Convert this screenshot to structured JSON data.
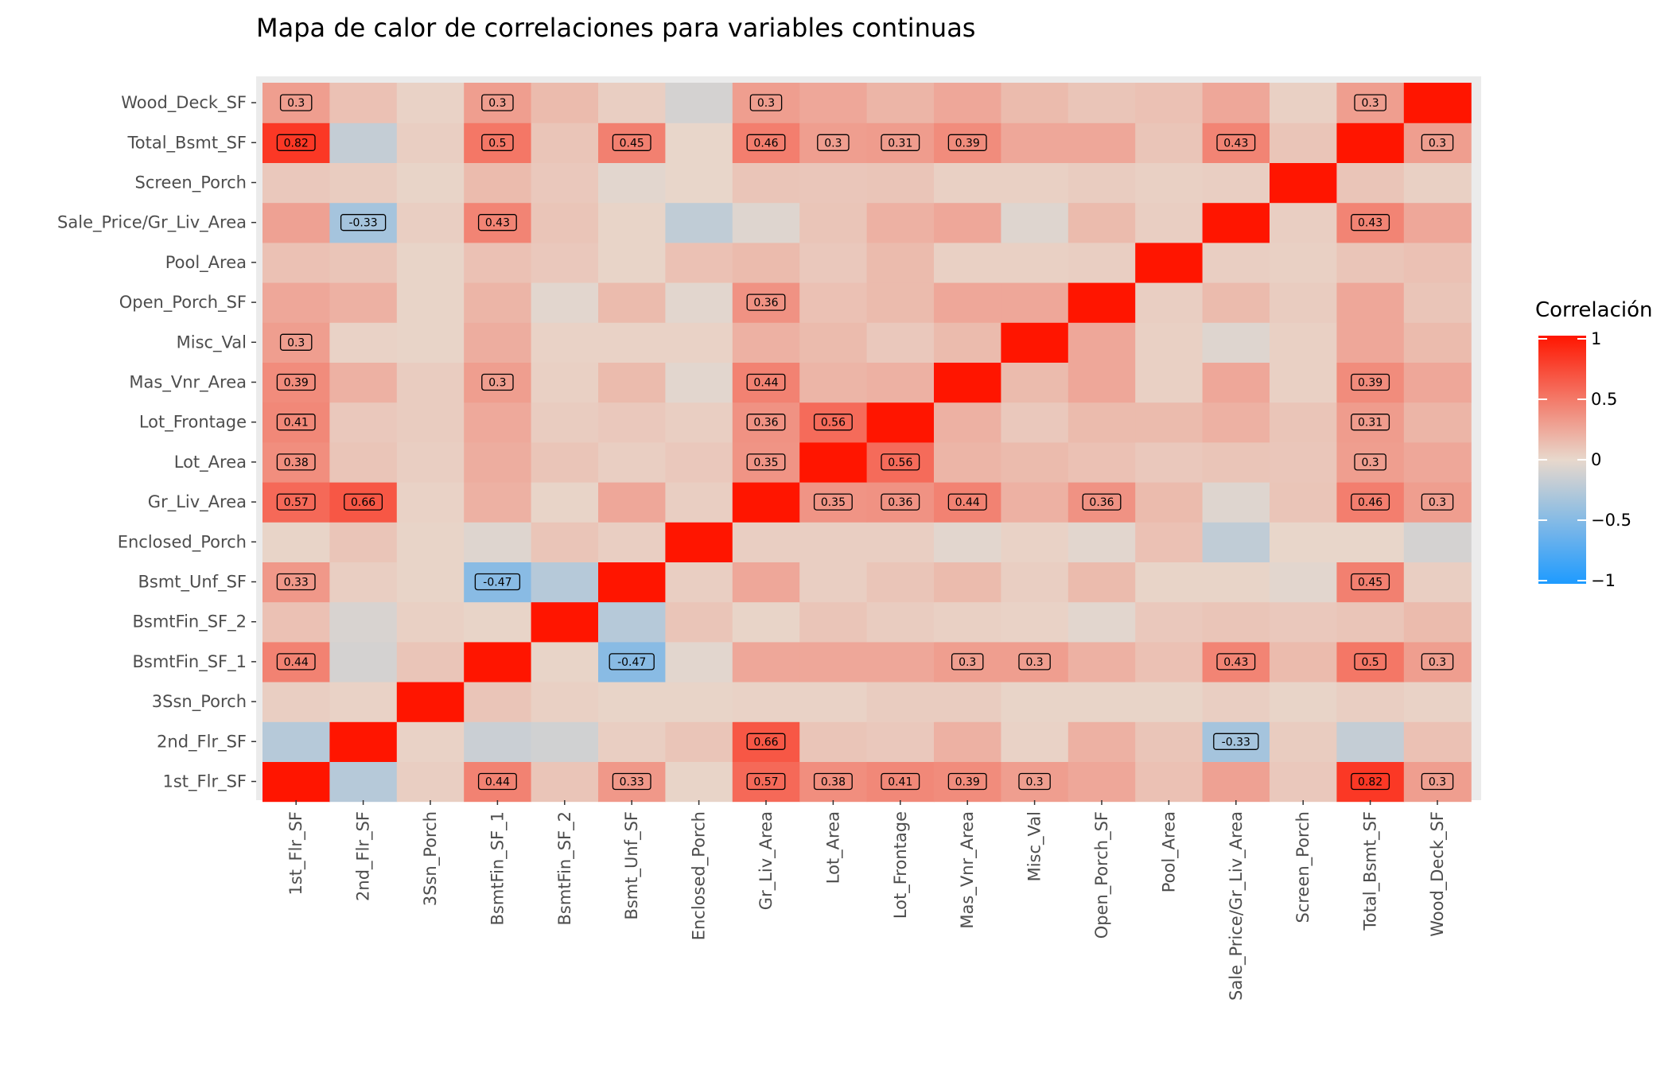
{
  "chart_data": {
    "type": "heatmap",
    "title": "Mapa de calor de correlaciones para variables continuas",
    "variables": [
      "1st_Flr_SF",
      "2nd_Flr_SF",
      "3Ssn_Porch",
      "BsmtFin_SF_1",
      "BsmtFin_SF_2",
      "Bsmt_Unf_SF",
      "Enclosed_Porch",
      "Gr_Liv_Area",
      "Lot_Area",
      "Lot_Frontage",
      "Mas_Vnr_Area",
      "Misc_Val",
      "Open_Porch_SF",
      "Pool_Area",
      "Sale_Price/Gr_Liv_Area",
      "Screen_Porch",
      "Total_Bsmt_SF",
      "Wood_Deck_SF"
    ],
    "matrix": [
      [
        1.0,
        -0.25,
        0.05,
        0.44,
        0.1,
        0.33,
        0.02,
        0.57,
        0.38,
        0.41,
        0.39,
        0.3,
        0.25,
        0.12,
        0.28,
        0.08,
        0.82,
        0.3
      ],
      [
        -0.25,
        1.0,
        0.03,
        -0.15,
        -0.12,
        0.05,
        0.1,
        0.66,
        0.1,
        0.08,
        0.2,
        0.03,
        0.2,
        0.1,
        -0.33,
        0.06,
        -0.18,
        0.12
      ],
      [
        0.05,
        0.03,
        1.0,
        0.1,
        0.04,
        0.02,
        0.02,
        0.03,
        0.03,
        0.06,
        0.06,
        0.02,
        0.02,
        0.02,
        0.05,
        0.02,
        0.05,
        0.03
      ],
      [
        0.44,
        -0.1,
        0.1,
        1.0,
        0.02,
        -0.47,
        -0.03,
        0.25,
        0.25,
        0.25,
        0.3,
        0.3,
        0.2,
        0.12,
        0.43,
        0.15,
        0.5,
        0.3
      ],
      [
        0.12,
        -0.08,
        0.04,
        0.02,
        1.0,
        -0.25,
        0.1,
        0.02,
        0.1,
        0.06,
        0.04,
        0.03,
        -0.03,
        0.08,
        0.1,
        0.08,
        0.1,
        0.15
      ],
      [
        0.33,
        0.05,
        0.02,
        -0.47,
        -0.25,
        1.0,
        0.05,
        0.25,
        0.05,
        0.1,
        0.15,
        0.05,
        0.15,
        0.02,
        0.02,
        -0.03,
        0.45,
        0.05
      ],
      [
        0.02,
        0.1,
        0.02,
        -0.05,
        0.1,
        0.05,
        1.0,
        0.05,
        0.05,
        0.05,
        -0.03,
        0.03,
        -0.03,
        0.12,
        -0.2,
        0.01,
        0.01,
        -0.1
      ],
      [
        0.57,
        0.66,
        0.03,
        0.2,
        0.02,
        0.25,
        0.05,
        1.0,
        0.35,
        0.36,
        0.44,
        0.2,
        0.36,
        0.15,
        -0.05,
        0.1,
        0.46,
        0.3
      ],
      [
        0.38,
        0.1,
        0.05,
        0.22,
        0.1,
        0.05,
        0.08,
        0.35,
        1.0,
        0.56,
        0.18,
        0.15,
        0.12,
        0.08,
        0.1,
        0.09,
        0.3,
        0.25
      ],
      [
        0.41,
        0.08,
        0.06,
        0.24,
        0.06,
        0.08,
        0.05,
        0.36,
        0.56,
        1.0,
        0.2,
        0.08,
        0.15,
        0.15,
        0.2,
        0.1,
        0.31,
        0.18
      ],
      [
        0.39,
        0.2,
        0.06,
        0.3,
        0.04,
        0.15,
        -0.03,
        0.44,
        0.18,
        0.2,
        1.0,
        0.15,
        0.25,
        0.04,
        0.25,
        0.04,
        0.39,
        0.25
      ],
      [
        0.3,
        0.03,
        0.02,
        0.22,
        0.03,
        0.03,
        0.03,
        0.2,
        0.15,
        0.08,
        0.15,
        1.0,
        0.25,
        0.04,
        -0.05,
        0.04,
        0.25,
        0.15
      ],
      [
        0.25,
        0.2,
        0.02,
        0.18,
        -0.03,
        0.15,
        -0.03,
        0.36,
        0.12,
        0.15,
        0.25,
        0.25,
        1.0,
        0.05,
        0.15,
        0.06,
        0.25,
        0.1
      ],
      [
        0.12,
        0.1,
        0.02,
        0.12,
        0.08,
        0.02,
        0.12,
        0.15,
        0.08,
        0.15,
        0.04,
        0.04,
        0.05,
        1.0,
        0.05,
        0.04,
        0.1,
        0.12
      ],
      [
        0.28,
        -0.33,
        0.05,
        0.43,
        0.1,
        0.02,
        -0.2,
        -0.05,
        0.1,
        0.2,
        0.25,
        -0.05,
        0.15,
        0.05,
        1.0,
        0.05,
        0.43,
        0.25
      ],
      [
        0.08,
        0.06,
        0.02,
        0.15,
        0.08,
        -0.03,
        0.01,
        0.1,
        0.09,
        0.1,
        0.04,
        0.04,
        0.06,
        0.04,
        0.05,
        1.0,
        0.1,
        0.04
      ],
      [
        0.82,
        -0.18,
        0.05,
        0.5,
        0.1,
        0.45,
        0.01,
        0.46,
        0.3,
        0.31,
        0.39,
        0.25,
        0.25,
        0.1,
        0.43,
        0.1,
        1.0,
        0.3
      ],
      [
        0.3,
        0.12,
        0.03,
        0.3,
        0.15,
        0.05,
        -0.1,
        0.3,
        0.25,
        0.18,
        0.25,
        0.15,
        0.1,
        0.12,
        0.25,
        0.04,
        0.3,
        1.0
      ]
    ],
    "label_threshold": 0.3,
    "legend": {
      "title": "Correlación",
      "ticks": [
        1,
        0.5,
        0,
        -0.5,
        -1
      ],
      "tick_labels": [
        "1",
        "0.5",
        "0",
        "−0.5",
        "−1"
      ],
      "placement": "right"
    },
    "color_scale": {
      "low": "#1E9BFF",
      "mid": "#E8D8CC",
      "high": "#FF1500",
      "limits": [
        -1,
        1
      ]
    },
    "panel_background": "#EBEBEB"
  }
}
